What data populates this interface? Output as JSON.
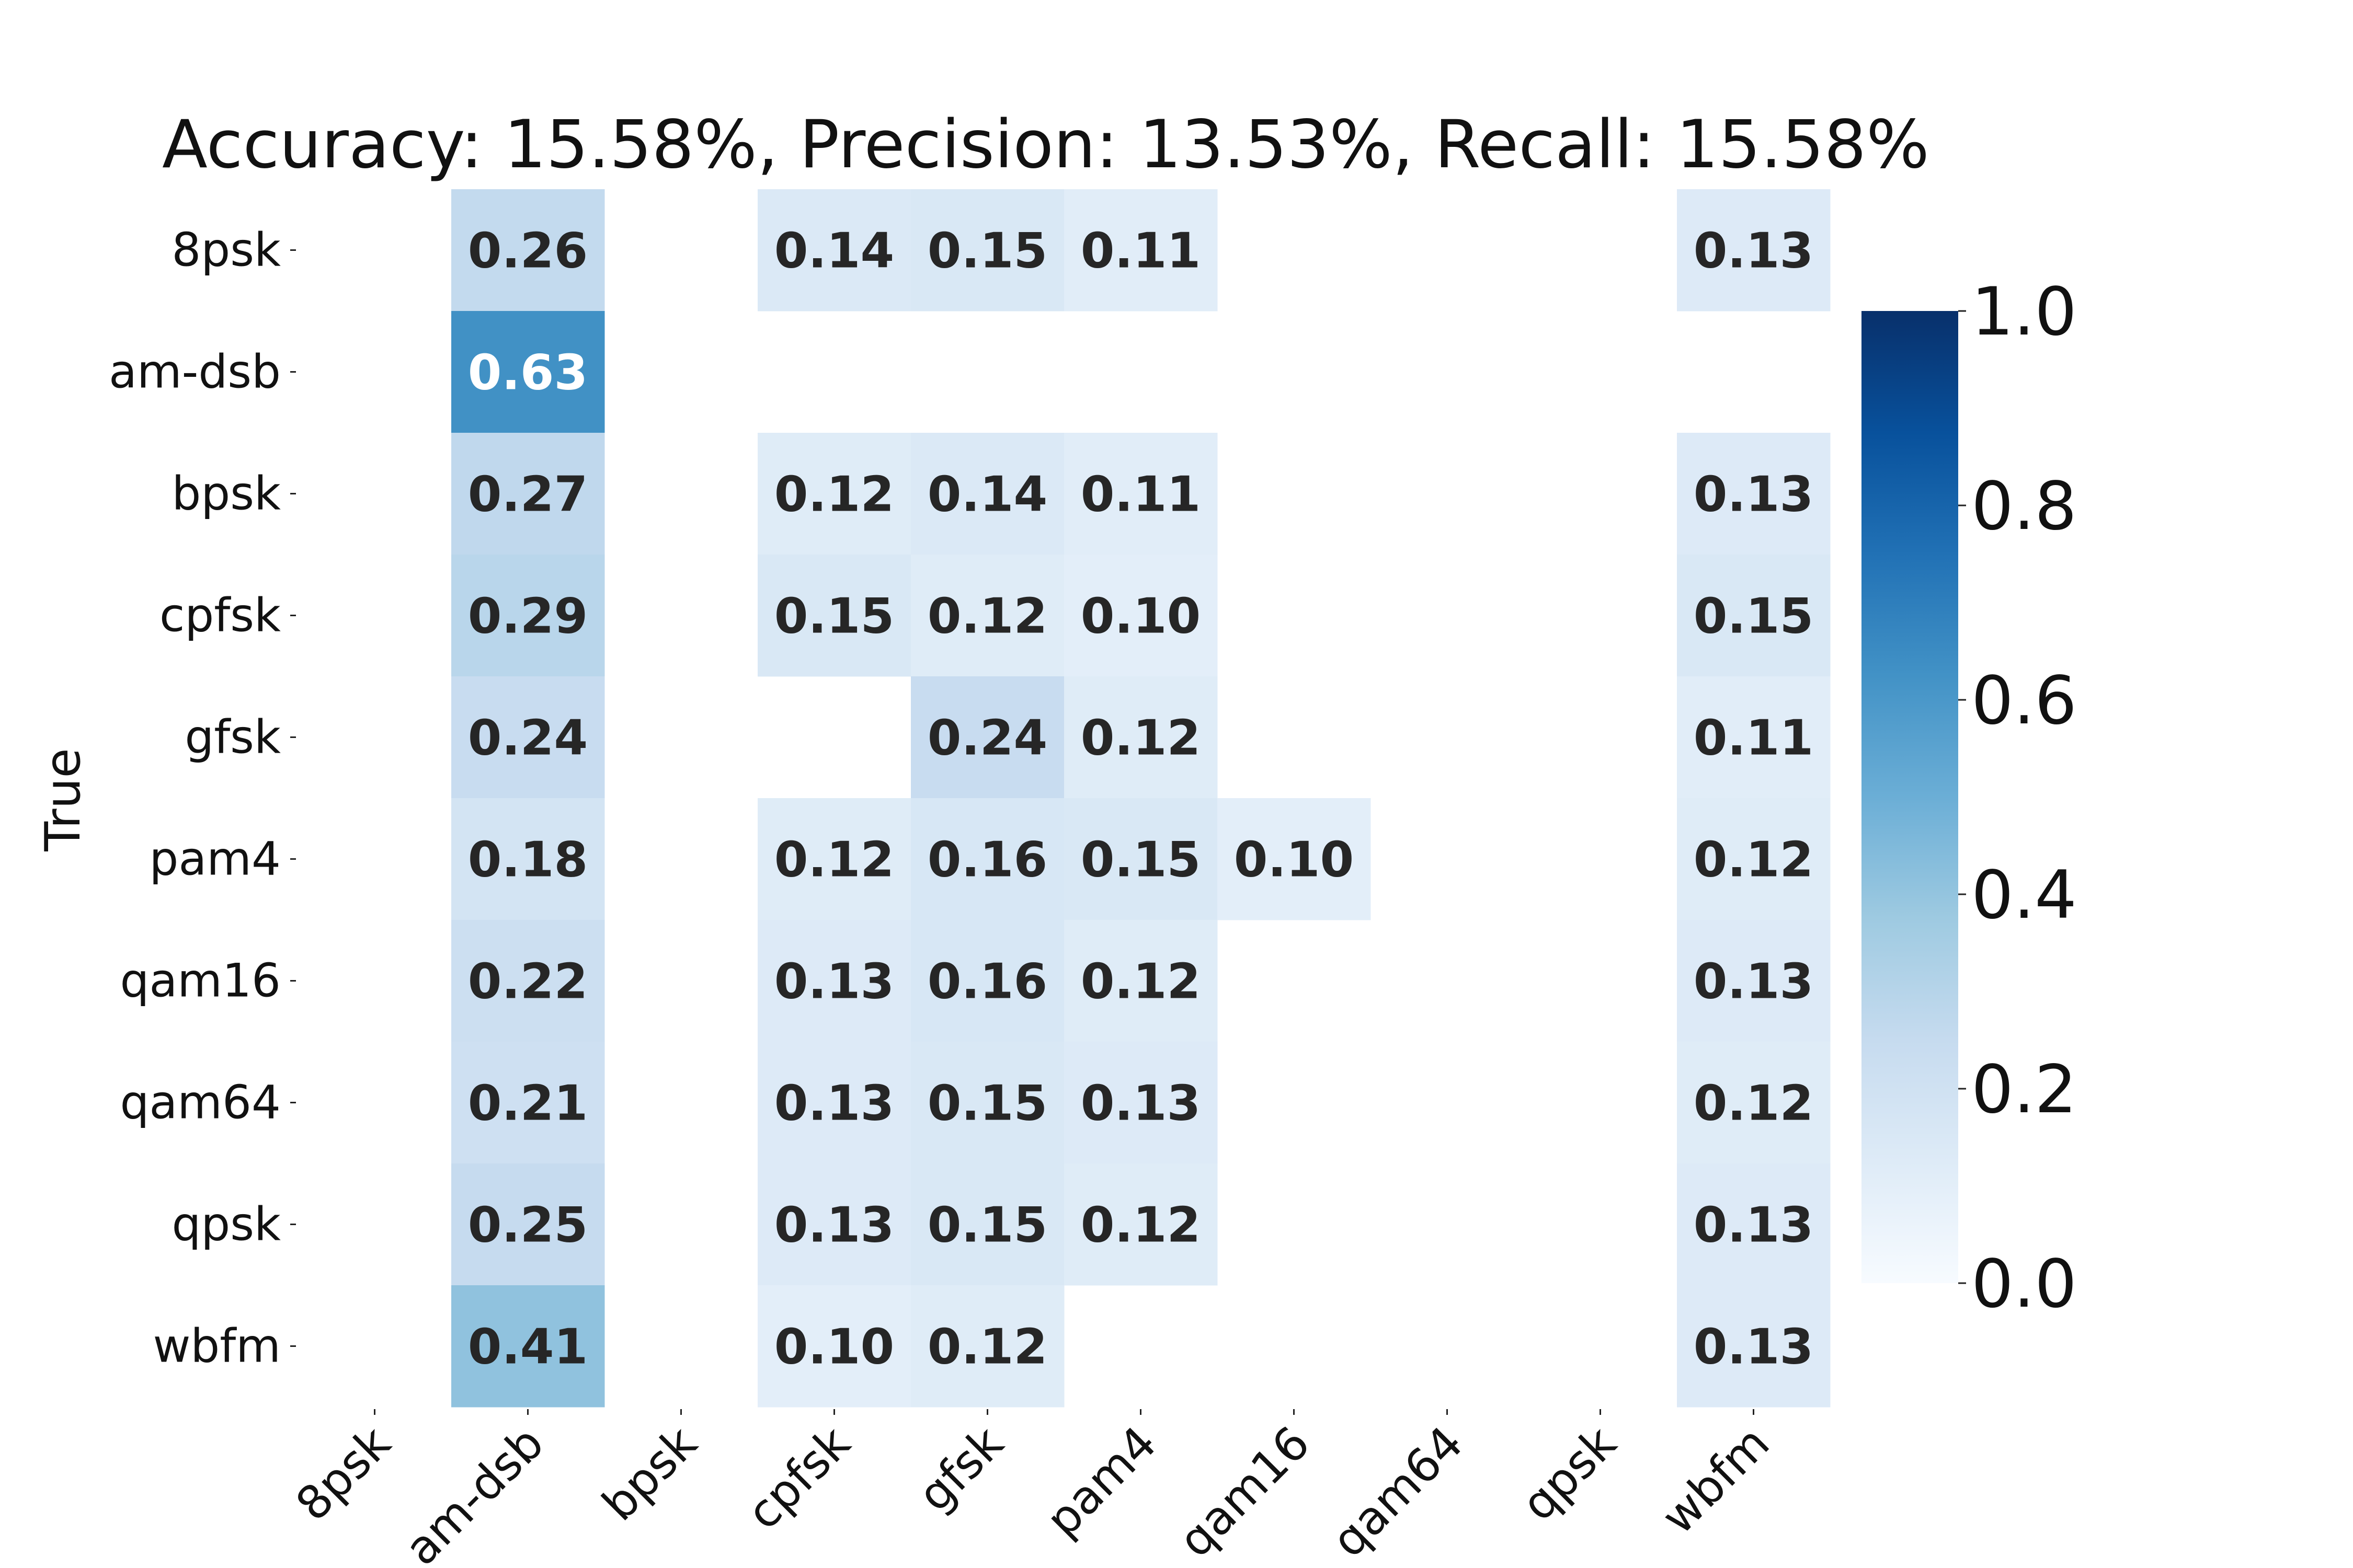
{
  "chart_data": {
    "type": "heatmap",
    "title": "Accuracy: 15.58%, Precision:  13.53%, Recall:  15.58%",
    "ylabel": "True",
    "xlabel": "",
    "x_categories": [
      "8psk",
      "am-dsb",
      "bpsk",
      "cpfsk",
      "gfsk",
      "pam4",
      "qam16",
      "qam64",
      "qpsk",
      "wbfm"
    ],
    "y_categories": [
      "8psk",
      "am-dsb",
      "bpsk",
      "cpfsk",
      "gfsk",
      "pam4",
      "qam16",
      "qam64",
      "qpsk",
      "wbfm"
    ],
    "values": [
      [
        0,
        0.26,
        0,
        0.14,
        0.15,
        0.11,
        0,
        0,
        0,
        0.13
      ],
      [
        0,
        0.63,
        0,
        0,
        0,
        0,
        0,
        0,
        0,
        0
      ],
      [
        0,
        0.27,
        0,
        0.12,
        0.14,
        0.11,
        0,
        0,
        0,
        0.13
      ],
      [
        0,
        0.29,
        0,
        0.15,
        0.12,
        0.1,
        0,
        0,
        0,
        0.15
      ],
      [
        0,
        0.24,
        0,
        0,
        0.24,
        0.12,
        0,
        0,
        0,
        0.11
      ],
      [
        0,
        0.18,
        0,
        0.12,
        0.16,
        0.15,
        0.1,
        0,
        0,
        0.12
      ],
      [
        0,
        0.22,
        0,
        0.13,
        0.16,
        0.12,
        0,
        0,
        0,
        0.13
      ],
      [
        0,
        0.21,
        0,
        0.13,
        0.15,
        0.13,
        0,
        0,
        0,
        0.12
      ],
      [
        0,
        0.25,
        0,
        0.13,
        0.15,
        0.12,
        0,
        0,
        0,
        0.13
      ],
      [
        0,
        0.41,
        0,
        0.1,
        0.12,
        0,
        0,
        0,
        0,
        0.13
      ]
    ],
    "annotation_threshold": 0.1,
    "colorbar": {
      "ticks": [
        "0.0",
        "0.2",
        "0.4",
        "0.6",
        "0.8",
        "1.0"
      ],
      "range": [
        0,
        1
      ],
      "colormap": "Blues",
      "colors": [
        "#f7fbff",
        "#deebf7",
        "#c6dbef",
        "#9ecae1",
        "#6baed6",
        "#4292c6",
        "#2171b5",
        "#08519c",
        "#08306b"
      ]
    },
    "grid": false
  }
}
